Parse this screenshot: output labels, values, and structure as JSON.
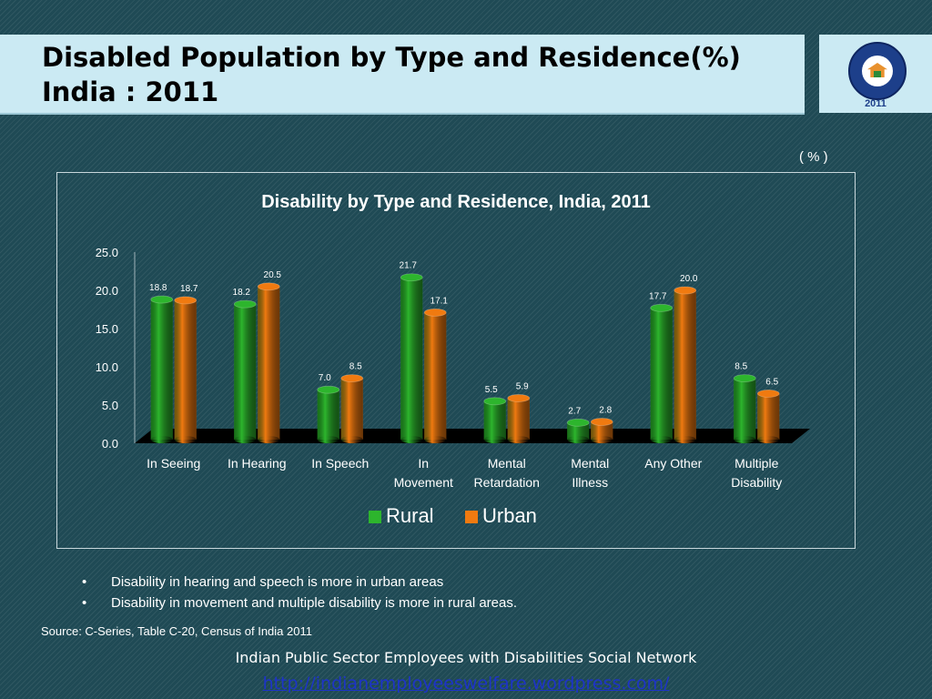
{
  "header": {
    "title": "Disabled Population by Type and Residence(%)\nIndia : 2011",
    "logo_year": "2011"
  },
  "unit_label": "( % )",
  "colors": {
    "rural": "#2db52d",
    "urban": "#f07a10",
    "axis_text": "#ffffff",
    "floor": "#000000"
  },
  "chart_data": {
    "type": "bar",
    "title": "Disability by Type and Residence, India, 2011",
    "xlabel": "",
    "ylabel": "",
    "categories": [
      "In Seeing",
      "In Hearing",
      "In Speech",
      "In Movement",
      "Mental Retardation",
      "Mental Illness",
      "Any Other",
      "Multiple Disability"
    ],
    "category_lines": [
      [
        "In Seeing"
      ],
      [
        "In Hearing"
      ],
      [
        "In Speech"
      ],
      [
        "In",
        "Movement"
      ],
      [
        "Mental",
        "Retardation"
      ],
      [
        "Mental",
        "Illness"
      ],
      [
        "Any Other"
      ],
      [
        "Multiple",
        "Disability"
      ]
    ],
    "series": [
      {
        "name": "Rural",
        "values": [
          18.8,
          18.2,
          7.0,
          21.7,
          5.5,
          2.7,
          17.7,
          8.5
        ],
        "labels": [
          "18.8",
          "18.2",
          "7.0",
          "21.7",
          "5.5",
          "2.7",
          "17.7",
          "8.5"
        ]
      },
      {
        "name": "Urban",
        "values": [
          18.7,
          20.5,
          8.5,
          17.1,
          5.9,
          2.8,
          20.0,
          6.5
        ],
        "labels": [
          "18.7",
          "20.5",
          "8.5",
          "17.1",
          "5.9",
          "2.8",
          "20.0",
          "6.5"
        ]
      }
    ],
    "ylim": [
      0,
      25
    ],
    "yticks": [
      "0.0",
      "5.0",
      "10.0",
      "15.0",
      "20.0",
      "25.0"
    ],
    "grid": false,
    "legend_position": "bottom",
    "style": "3d-cylinder"
  },
  "bullets": [
    "Disability  in hearing and  speech is more in urban areas",
    "Disability in movement  and multiple disability is more in rural areas."
  ],
  "bullet_symbol": "•",
  "source": "Source: C-Series, Table C-20, Census of India 2011",
  "footer": {
    "org": "Indian Public Sector Employees with Disabilities Social Network",
    "link": "http://indianemployeeswelfare.wordpress.com/"
  }
}
